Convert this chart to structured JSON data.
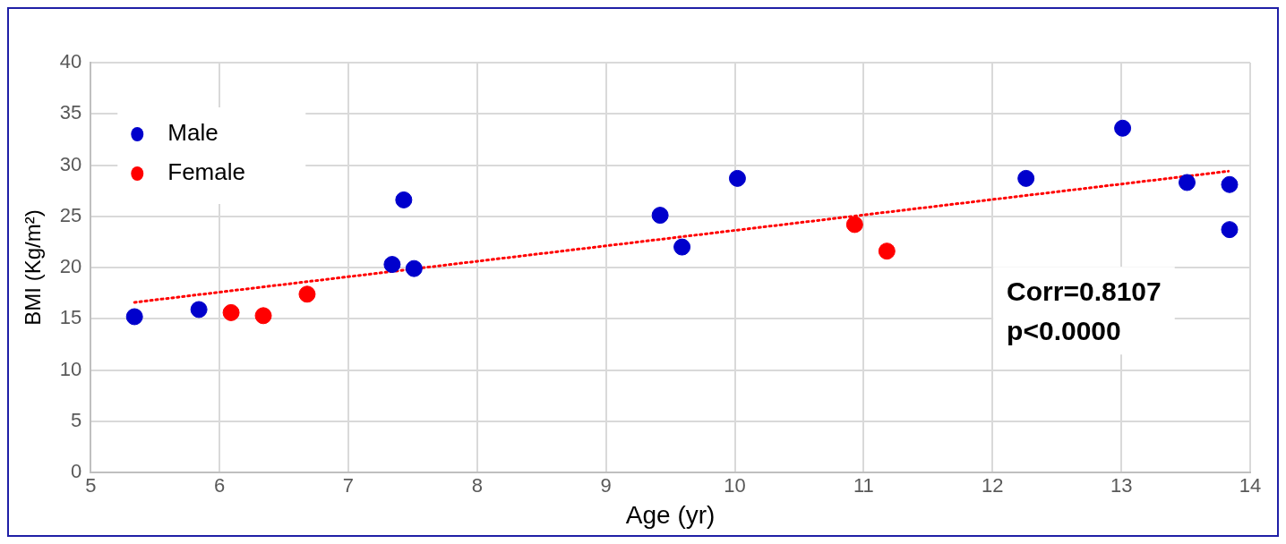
{
  "chart_data": {
    "type": "scatter",
    "xlabel": "Age (yr)",
    "ylabel": "BMI (Kg/m²)",
    "xlim": [
      5,
      14
    ],
    "xticks": [
      5,
      6,
      7,
      8,
      9,
      10,
      11,
      12,
      13,
      14
    ],
    "ylim": [
      0,
      40
    ],
    "yticks": [
      0,
      5,
      10,
      15,
      20,
      25,
      30,
      35,
      40
    ],
    "grid": true,
    "legend": "top left",
    "marker": "circle",
    "series": [
      {
        "name": "Male",
        "color": "#0000cc",
        "x": [
          5.34,
          5.84,
          7.34,
          7.43,
          7.51,
          9.42,
          9.59,
          10.02,
          12.26,
          13.01,
          13.51,
          13.84,
          13.84
        ],
        "values": [
          15.2,
          15.9,
          20.3,
          26.6,
          19.9,
          25.1,
          22.0,
          28.7,
          28.7,
          33.6,
          28.3,
          28.1,
          23.7
        ]
      },
      {
        "name": "Female",
        "color": "#ff0000",
        "x": [
          6.09,
          6.34,
          6.68,
          10.93,
          11.18
        ],
        "values": [
          15.6,
          15.3,
          17.4,
          24.2,
          21.6
        ]
      },
      {
        "type": "line",
        "color": "#ff0000",
        "line_style": "dotted",
        "marker": "none",
        "x": [
          5.34,
          13.83
        ],
        "values": [
          16.6,
          29.4
        ]
      }
    ],
    "annotations": [
      "Corr=0.8107",
      "p<0.0000"
    ]
  }
}
